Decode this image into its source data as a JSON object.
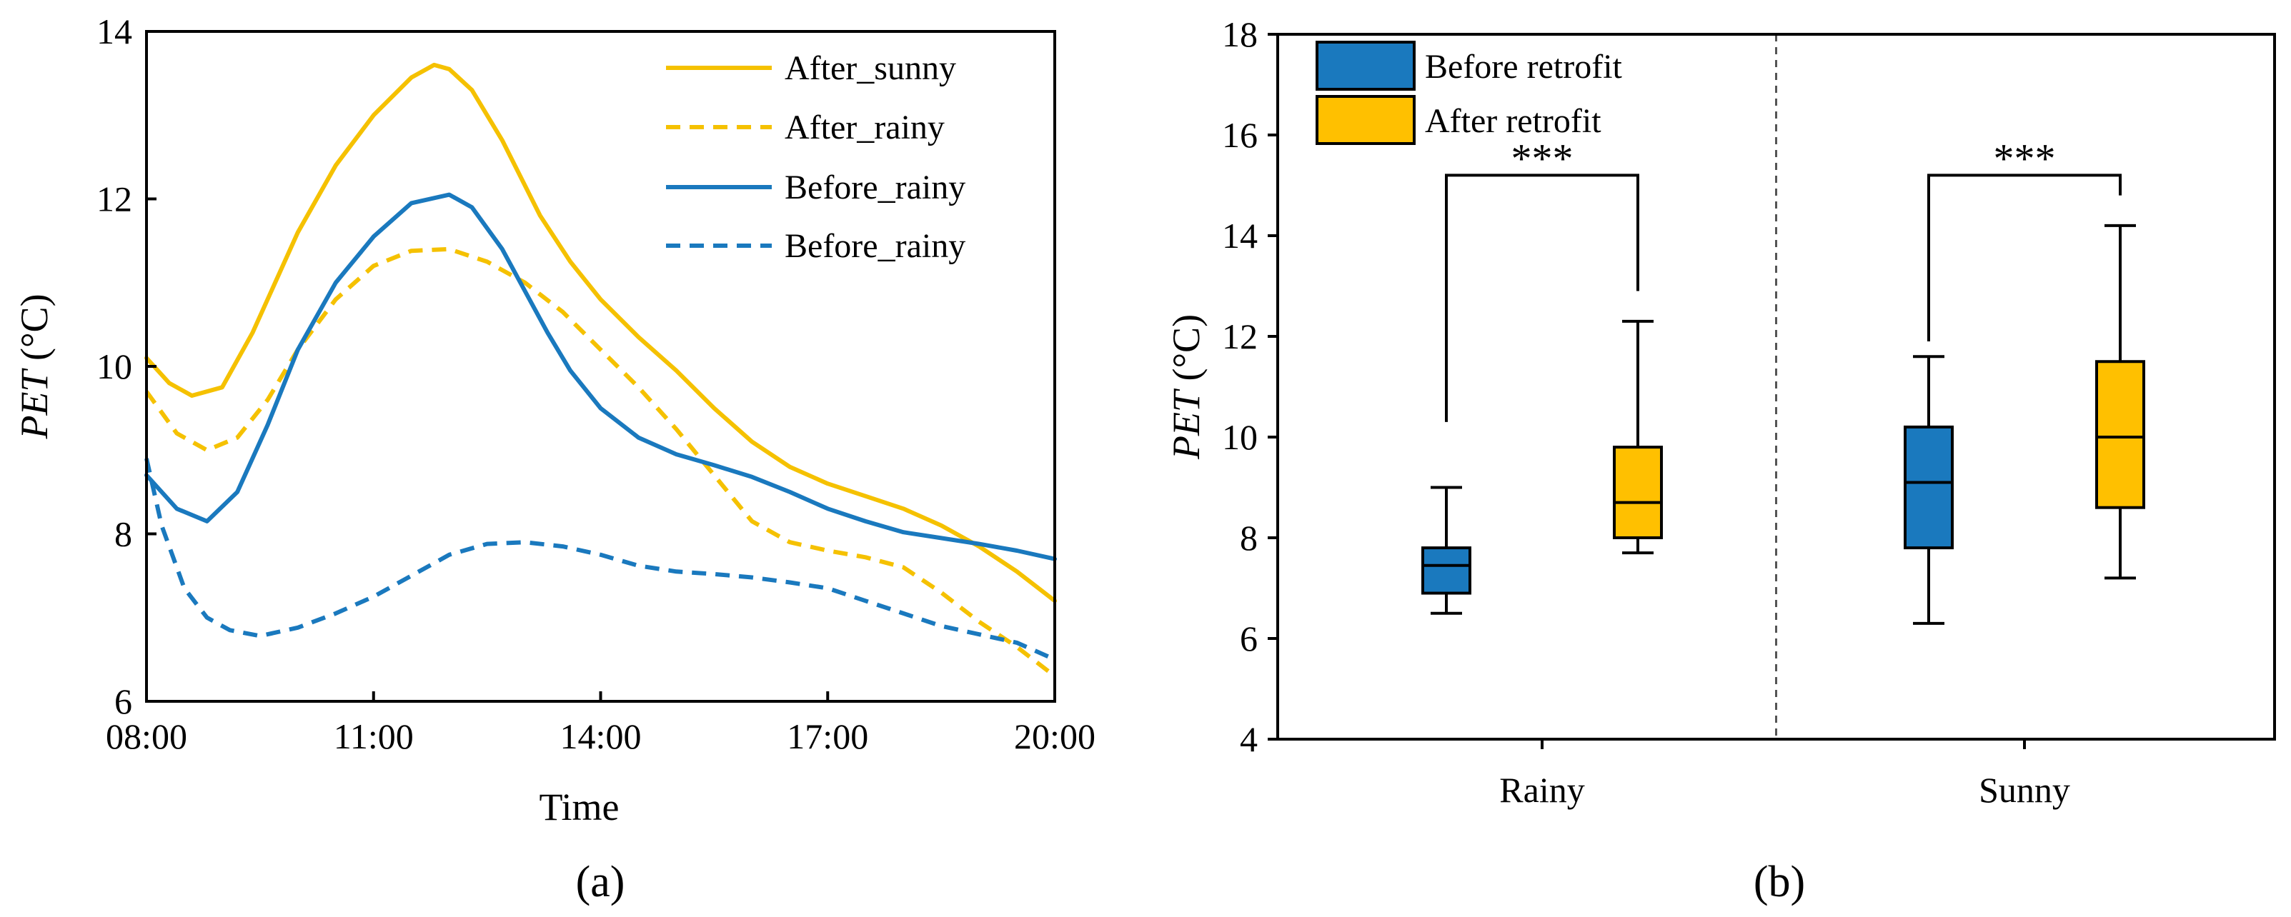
{
  "chart_data": [
    {
      "panel": "(a)",
      "type": "line",
      "xlabel": "Time",
      "ylabel_italic": "PET",
      "ylabel_unit": " (°C)",
      "xlim": [
        8,
        20
      ],
      "ylim": [
        6,
        14
      ],
      "x_ticks": [
        8,
        11,
        14,
        17,
        20
      ],
      "x_tick_labels": [
        "08:00",
        "11:00",
        "14:00",
        "17:00",
        "20:00"
      ],
      "y_ticks": [
        6,
        8,
        10,
        12,
        14
      ],
      "y_tick_labels": [
        "6",
        "8",
        "10",
        "12",
        "14"
      ],
      "legend_position": "top-right",
      "series": [
        {
          "name": "After_sunny",
          "color": "#F5C100",
          "dash": "solid",
          "x": [
            8.0,
            8.3,
            8.6,
            9.0,
            9.4,
            10.0,
            10.5,
            11.0,
            11.5,
            11.8,
            12.0,
            12.3,
            12.7,
            13.2,
            13.6,
            14.0,
            14.5,
            15.0,
            15.5,
            16.0,
            16.5,
            17.0,
            17.5,
            18.0,
            18.5,
            19.0,
            19.5,
            20.0
          ],
          "y": [
            10.1,
            9.8,
            9.65,
            9.75,
            10.4,
            11.6,
            12.4,
            13.0,
            13.45,
            13.6,
            13.55,
            13.3,
            12.7,
            11.8,
            11.25,
            10.8,
            10.35,
            9.95,
            9.5,
            9.1,
            8.8,
            8.6,
            8.45,
            8.3,
            8.1,
            7.85,
            7.55,
            7.2
          ]
        },
        {
          "name": "After_rainy",
          "color": "#F5C100",
          "dash": "dashed",
          "x": [
            8.0,
            8.4,
            8.8,
            9.2,
            9.6,
            10.0,
            10.5,
            11.0,
            11.5,
            12.0,
            12.5,
            13.0,
            13.5,
            14.0,
            14.5,
            15.0,
            15.5,
            16.0,
            16.5,
            17.0,
            17.5,
            18.0,
            18.5,
            19.0,
            19.5,
            20.0
          ],
          "y": [
            9.7,
            9.2,
            9.0,
            9.15,
            9.6,
            10.2,
            10.8,
            11.2,
            11.38,
            11.4,
            11.25,
            11.0,
            10.65,
            10.2,
            9.75,
            9.25,
            8.7,
            8.15,
            7.9,
            7.8,
            7.72,
            7.6,
            7.3,
            6.95,
            6.65,
            6.3
          ]
        },
        {
          "name": "Before_rainy",
          "color": "#1A79BE",
          "dash": "solid",
          "x": [
            8.0,
            8.4,
            8.8,
            9.2,
            9.6,
            10.0,
            10.5,
            11.0,
            11.5,
            12.0,
            12.3,
            12.7,
            13.0,
            13.3,
            13.6,
            14.0,
            14.5,
            15.0,
            15.5,
            16.0,
            16.5,
            17.0,
            17.5,
            18.0,
            18.5,
            19.0,
            19.5,
            20.0
          ],
          "y": [
            8.7,
            8.3,
            8.15,
            8.5,
            9.3,
            10.2,
            11.0,
            11.55,
            11.95,
            12.05,
            11.9,
            11.4,
            10.9,
            10.4,
            9.95,
            9.5,
            9.15,
            8.95,
            8.82,
            8.68,
            8.5,
            8.3,
            8.15,
            8.02,
            7.95,
            7.88,
            7.8,
            7.7
          ]
        },
        {
          "name": "Before_rainy",
          "color": "#1A79BE",
          "dash": "dashed",
          "x": [
            8.0,
            8.2,
            8.5,
            8.8,
            9.1,
            9.5,
            10.0,
            10.5,
            11.0,
            11.5,
            12.0,
            12.5,
            13.0,
            13.5,
            14.0,
            14.5,
            15.0,
            15.5,
            16.0,
            16.5,
            17.0,
            17.5,
            18.0,
            18.5,
            19.0,
            19.5,
            20.0
          ],
          "y": [
            8.9,
            8.1,
            7.35,
            7.0,
            6.85,
            6.78,
            6.88,
            7.05,
            7.25,
            7.5,
            7.75,
            7.88,
            7.9,
            7.85,
            7.75,
            7.62,
            7.55,
            7.52,
            7.48,
            7.42,
            7.35,
            7.2,
            7.05,
            6.9,
            6.8,
            6.7,
            6.5
          ]
        }
      ]
    },
    {
      "panel": "(b)",
      "type": "box",
      "xlabel": "",
      "ylabel_italic": "PET",
      "ylabel_unit": " (°C)",
      "ylim": [
        4,
        18
      ],
      "y_ticks": [
        4,
        6,
        8,
        10,
        12,
        14,
        16,
        18
      ],
      "y_tick_labels": [
        "4",
        "6",
        "8",
        "10",
        "12",
        "14",
        "16",
        "18"
      ],
      "categories": [
        "Rainy",
        "Sunny"
      ],
      "legend_position": "top-left",
      "series": [
        {
          "name": "Before retrofit",
          "color": "#1A79BE",
          "boxes": [
            {
              "whisker_low": 6.5,
              "q1": 6.9,
              "median": 7.45,
              "q3": 7.8,
              "whisker_high": 9.0
            },
            {
              "whisker_low": 6.3,
              "q1": 7.8,
              "median": 9.1,
              "q3": 10.2,
              "whisker_high": 11.6
            }
          ]
        },
        {
          "name": "After retrofit",
          "color": "#FFC000",
          "boxes": [
            {
              "whisker_low": 7.7,
              "q1": 8.0,
              "median": 8.7,
              "q3": 9.8,
              "whisker_high": 12.3
            },
            {
              "whisker_low": 7.2,
              "q1": 8.6,
              "median": 10.0,
              "q3": 11.5,
              "whisker_high": 14.2
            }
          ]
        }
      ],
      "significance": [
        {
          "category": "Rainy",
          "label": "***",
          "bracket_y": 15.2,
          "left_drop_to": 10.3,
          "right_drop_to": 12.9
        },
        {
          "category": "Sunny",
          "label": "***",
          "bracket_y": 15.2,
          "left_drop_to": 11.9,
          "right_drop_to": 14.8
        }
      ]
    }
  ]
}
